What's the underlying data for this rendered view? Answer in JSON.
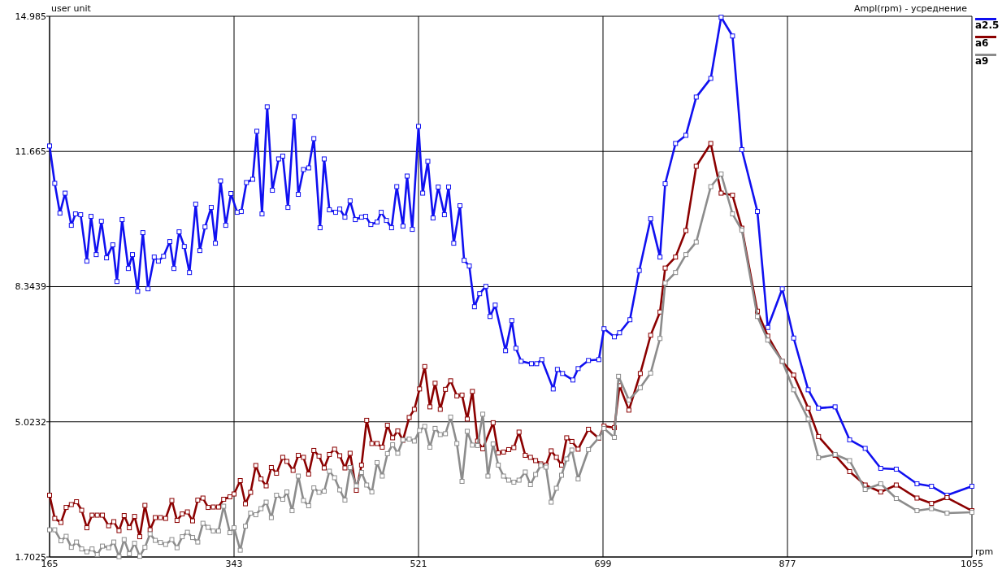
{
  "chart_data": {
    "type": "line",
    "title": "Ampl(rpm) - усреднение",
    "xlabel": "rpm",
    "ylabel": "user unit",
    "xlim": [
      165,
      1055
    ],
    "xticks": [
      165,
      343,
      521,
      699,
      877,
      1055
    ],
    "ylim": [
      1.7025,
      14.985
    ],
    "yticks": [
      1.7025,
      5.0232,
      8.3439,
      11.665,
      14.985
    ],
    "grid": true,
    "legend": "top right",
    "marker": "square",
    "line_style": "solid",
    "series": [
      {
        "name": "a2.5",
        "color": "#1010f0",
        "x": [
          165,
          170,
          175,
          180,
          186,
          190,
          195,
          201,
          205,
          210,
          215,
          220,
          226,
          230,
          235,
          241,
          245,
          250,
          255,
          260,
          266,
          270,
          275,
          281,
          285,
          290,
          295,
          300,
          306,
          310,
          315,
          321,
          325,
          330,
          335,
          340,
          346,
          350,
          355,
          361,
          365,
          370,
          375,
          380,
          386,
          390,
          395,
          401,
          405,
          410,
          415,
          420,
          426,
          430,
          435,
          441,
          445,
          450,
          455,
          460,
          466,
          470,
          475,
          481,
          485,
          490,
          495,
          500,
          506,
          510,
          515,
          521,
          525,
          530,
          535,
          540,
          546,
          550,
          555,
          561,
          565,
          570,
          575,
          580,
          586,
          590,
          595,
          605,
          611,
          615,
          620,
          630,
          635,
          640,
          651,
          655,
          660,
          670,
          675,
          685,
          695,
          700,
          710,
          715,
          725,
          734,
          745,
          754,
          759,
          769,
          779,
          789,
          803,
          813,
          824,
          833,
          848,
          858,
          872,
          883,
          897,
          907,
          923,
          937,
          952,
          967,
          982,
          1002,
          1016,
          1031,
          1055
        ],
        "values": [
          11.8,
          10.88,
          10.15,
          10.64,
          9.85,
          10.13,
          10.11,
          8.97,
          10.07,
          9.13,
          9.95,
          9.05,
          9.37,
          8.47,
          9.99,
          8.79,
          9.13,
          8.23,
          9.67,
          8.29,
          9.07,
          8.97,
          9.09,
          9.45,
          8.79,
          9.69,
          9.33,
          8.69,
          10.37,
          9.23,
          9.81,
          10.29,
          9.41,
          10.94,
          9.85,
          10.63,
          10.17,
          10.19,
          10.9,
          10.98,
          12.16,
          10.13,
          12.76,
          10.71,
          11.48,
          11.55,
          10.29,
          12.52,
          10.61,
          11.22,
          11.26,
          11.98,
          9.79,
          11.48,
          10.23,
          10.17,
          10.25,
          10.05,
          10.45,
          9.99,
          10.05,
          10.07,
          9.87,
          9.93,
          10.17,
          9.97,
          9.79,
          10.8,
          9.83,
          11.06,
          9.75,
          12.28,
          10.64,
          11.42,
          10.03,
          10.79,
          10.11,
          10.79,
          9.41,
          10.33,
          8.99,
          8.85,
          7.85,
          8.17,
          8.35,
          7.61,
          7.89,
          6.77,
          7.51,
          6.83,
          6.51,
          6.45,
          6.45,
          6.55,
          5.83,
          6.31,
          6.21,
          6.05,
          6.33,
          6.53,
          6.55,
          7.31,
          7.11,
          7.21,
          7.53,
          8.74,
          10.01,
          9.07,
          10.87,
          11.86,
          12.06,
          13.0,
          13.46,
          14.96,
          14.5,
          11.71,
          10.19,
          7.34,
          8.29,
          7.08,
          5.81,
          5.36,
          5.39,
          4.58,
          4.37,
          3.88,
          3.86,
          3.5,
          3.44,
          3.22,
          3.44
        ]
      },
      {
        "name": "a6",
        "color": "#8b0000",
        "x": [
          165,
          170,
          176,
          181,
          186,
          191,
          196,
          201,
          206,
          211,
          216,
          222,
          227,
          232,
          237,
          242,
          247,
          252,
          257,
          262,
          267,
          272,
          277,
          283,
          288,
          293,
          298,
          303,
          308,
          313,
          318,
          323,
          328,
          333,
          339,
          343,
          349,
          354,
          359,
          364,
          369,
          374,
          379,
          384,
          390,
          394,
          400,
          405,
          410,
          415,
          420,
          425,
          430,
          435,
          440,
          445,
          450,
          455,
          461,
          466,
          471,
          476,
          481,
          486,
          491,
          496,
          501,
          506,
          512,
          517,
          522,
          527,
          532,
          537,
          542,
          547,
          552,
          558,
          563,
          568,
          573,
          578,
          583,
          593,
          598,
          603,
          608,
          613,
          618,
          624,
          629,
          634,
          639,
          644,
          649,
          654,
          659,
          664,
          669,
          675,
          685,
          695,
          700,
          710,
          715,
          724,
          735,
          745,
          754,
          759,
          769,
          779,
          789,
          803,
          813,
          824,
          833,
          848,
          858,
          872,
          883,
          897,
          907,
          923,
          937,
          952,
          967,
          982,
          1002,
          1016,
          1031,
          1055
        ],
        "values": [
          3.22,
          2.65,
          2.55,
          2.92,
          2.99,
          3.06,
          2.85,
          2.42,
          2.73,
          2.73,
          2.73,
          2.47,
          2.57,
          2.35,
          2.72,
          2.42,
          2.7,
          2.2,
          2.97,
          2.37,
          2.67,
          2.67,
          2.65,
          3.09,
          2.6,
          2.76,
          2.81,
          2.59,
          3.1,
          3.15,
          2.92,
          2.93,
          2.93,
          3.12,
          3.18,
          3.25,
          3.58,
          3.01,
          3.29,
          3.95,
          3.62,
          3.45,
          3.9,
          3.76,
          4.15,
          4.05,
          3.83,
          4.2,
          4.15,
          3.74,
          4.32,
          4.18,
          3.89,
          4.22,
          4.35,
          4.19,
          3.89,
          4.25,
          3.34,
          3.96,
          5.06,
          4.49,
          4.49,
          4.4,
          4.94,
          4.63,
          4.8,
          4.57,
          5.13,
          5.33,
          5.83,
          6.38,
          5.39,
          5.97,
          5.33,
          5.82,
          6.03,
          5.66,
          5.68,
          5.09,
          5.77,
          4.55,
          4.36,
          5.0,
          4.26,
          4.28,
          4.34,
          4.39,
          4.77,
          4.2,
          4.15,
          4.07,
          3.99,
          3.96,
          4.31,
          4.15,
          3.96,
          4.63,
          4.54,
          4.35,
          4.84,
          4.62,
          4.92,
          4.88,
          5.91,
          5.31,
          6.21,
          7.15,
          7.72,
          8.8,
          9.07,
          9.72,
          11.3,
          11.86,
          10.64,
          10.59,
          9.78,
          7.74,
          7.13,
          6.51,
          6.17,
          5.36,
          4.66,
          4.2,
          3.8,
          3.47,
          3.3,
          3.47,
          3.15,
          3.02,
          3.16,
          2.84
        ]
      },
      {
        "name": "a9",
        "color": "#8c8c8c",
        "x": [
          165,
          170,
          176,
          181,
          186,
          191,
          196,
          201,
          206,
          211,
          216,
          222,
          227,
          232,
          237,
          242,
          247,
          252,
          257,
          262,
          267,
          272,
          277,
          283,
          288,
          293,
          298,
          303,
          308,
          313,
          318,
          323,
          328,
          333,
          339,
          343,
          349,
          354,
          359,
          364,
          369,
          374,
          379,
          384,
          390,
          394,
          399,
          405,
          410,
          415,
          420,
          425,
          430,
          435,
          440,
          445,
          450,
          455,
          461,
          466,
          471,
          476,
          481,
          486,
          491,
          496,
          501,
          506,
          512,
          517,
          522,
          527,
          532,
          537,
          542,
          547,
          552,
          558,
          563,
          568,
          573,
          578,
          583,
          588,
          593,
          598,
          603,
          608,
          613,
          618,
          624,
          629,
          634,
          639,
          644,
          649,
          654,
          659,
          664,
          669,
          675,
          685,
          695,
          700,
          710,
          714,
          724,
          735,
          745,
          754,
          759,
          769,
          779,
          789,
          803,
          813,
          824,
          833,
          848,
          858,
          872,
          883,
          897,
          907,
          923,
          937,
          952,
          967,
          982,
          1002,
          1016,
          1031,
          1055
        ],
        "values": [
          2.37,
          2.37,
          2.1,
          2.21,
          1.94,
          2.07,
          1.9,
          1.83,
          1.9,
          1.76,
          1.97,
          1.93,
          2.07,
          1.71,
          2.13,
          1.78,
          2.04,
          1.72,
          1.94,
          2.27,
          2.11,
          2.06,
          2.01,
          2.13,
          1.93,
          2.2,
          2.31,
          2.18,
          2.07,
          2.53,
          2.43,
          2.34,
          2.34,
          2.95,
          2.3,
          2.42,
          1.87,
          2.46,
          2.78,
          2.74,
          2.89,
          3.05,
          2.67,
          3.22,
          3.12,
          3.3,
          2.84,
          3.69,
          3.09,
          2.96,
          3.4,
          3.29,
          3.32,
          3.81,
          3.65,
          3.35,
          3.1,
          3.9,
          3.45,
          3.78,
          3.47,
          3.3,
          4.02,
          3.69,
          4.24,
          4.46,
          4.25,
          4.58,
          4.6,
          4.55,
          4.81,
          4.91,
          4.4,
          4.86,
          4.71,
          4.73,
          5.14,
          4.49,
          3.56,
          4.79,
          4.45,
          4.44,
          5.21,
          3.69,
          4.48,
          3.96,
          3.69,
          3.59,
          3.54,
          3.59,
          3.79,
          3.48,
          3.73,
          3.95,
          3.91,
          3.05,
          3.39,
          3.71,
          4.11,
          4.33,
          3.62,
          4.34,
          4.63,
          4.86,
          4.64,
          6.14,
          5.56,
          5.86,
          6.22,
          7.07,
          8.43,
          8.69,
          9.13,
          9.44,
          10.8,
          11.11,
          10.13,
          9.73,
          7.61,
          7.03,
          6.51,
          5.81,
          5.09,
          4.14,
          4.22,
          4.07,
          3.36,
          3.5,
          3.14,
          2.84,
          2.89,
          2.78,
          2.8
        ]
      }
    ]
  }
}
